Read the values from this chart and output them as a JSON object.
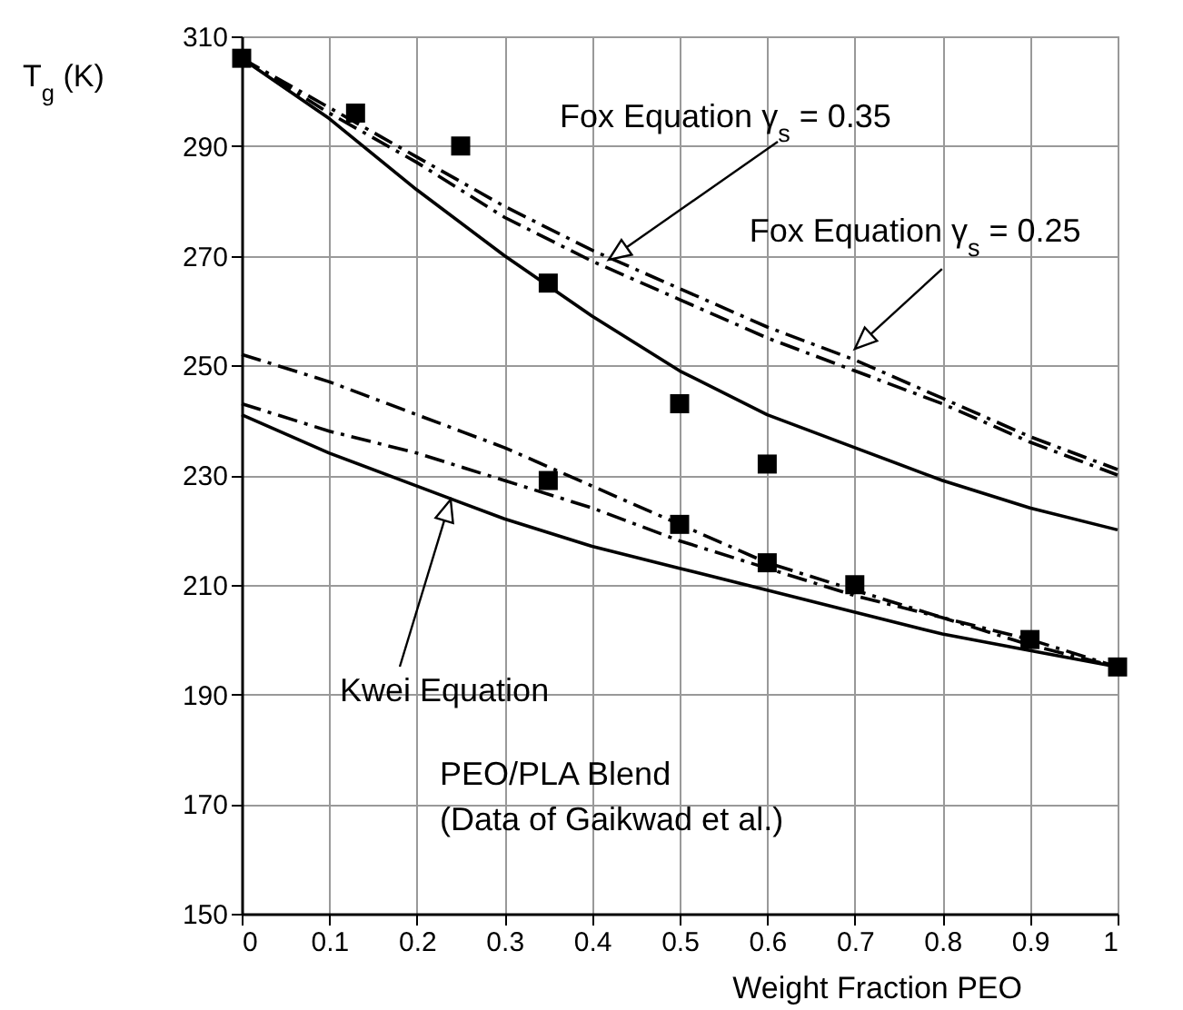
{
  "chart_data": {
    "type": "line",
    "xlabel": "Weight Fraction PEO",
    "ylabel": "T$_{g}$ (K)",
    "xlim": [
      0,
      1
    ],
    "ylim": [
      150,
      310
    ],
    "xticks": [
      0,
      0.1,
      0.2,
      0.3,
      0.4,
      0.5,
      0.6,
      0.7,
      0.8,
      0.9,
      1
    ],
    "yticks": [
      150,
      170,
      190,
      210,
      230,
      250,
      270,
      290,
      310
    ],
    "grid": true,
    "series": [
      {
        "type": "scatter",
        "marker": "square",
        "color": "#000000",
        "x": [
          0,
          0.13,
          0.25,
          0.35,
          0.35,
          0.5,
          0.5,
          0.6,
          0.6,
          0.7,
          0.9,
          1
        ],
        "values": [
          306,
          296,
          290,
          265,
          229,
          243,
          221,
          232,
          214,
          210,
          200,
          195
        ]
      },
      {
        "type": "line",
        "line_style": "solid",
        "color": "#000000",
        "x": [
          0,
          0.1,
          0.2,
          0.3,
          0.4,
          0.5,
          0.6,
          0.7,
          0.8,
          0.9,
          1
        ],
        "values": [
          306,
          295,
          282,
          270,
          259,
          249,
          241,
          235,
          229,
          224,
          220
        ]
      },
      {
        "line_style": "dashed",
        "color": "#000000",
        "x": [
          0,
          0.1,
          0.2,
          0.3,
          0.4,
          0.5,
          0.6,
          0.7,
          0.8,
          0.9,
          1
        ],
        "values": [
          306,
          297,
          288,
          279,
          271,
          264,
          257,
          251,
          244,
          237,
          231
        ]
      },
      {
        "line_style": "dashed",
        "color": "#000000",
        "x": [
          0,
          0.1,
          0.2,
          0.3,
          0.4,
          0.5,
          0.6,
          0.7,
          0.8,
          0.9,
          1
        ],
        "values": [
          306,
          296,
          287,
          277,
          269,
          262,
          255,
          249,
          243,
          236,
          230
        ]
      },
      {
        "line_style": "dashed",
        "color": "#000000",
        "x": [
          0,
          0.1,
          0.2,
          0.3,
          0.4,
          0.5,
          0.6,
          0.7,
          0.8,
          0.9,
          1
        ],
        "values": [
          252,
          247,
          241,
          235,
          228,
          221,
          214,
          209,
          204,
          200,
          195
        ]
      },
      {
        "line_style": "dashed",
        "color": "#000000",
        "x": [
          0,
          0.1,
          0.2,
          0.3,
          0.4,
          0.5,
          0.6,
          0.7,
          0.8,
          0.9,
          1
        ],
        "values": [
          243,
          238,
          234,
          229,
          224,
          218,
          213,
          208,
          204,
          199,
          195
        ]
      },
      {
        "line_style": "solid",
        "color": "#000000",
        "x": [
          0,
          0.1,
          0.2,
          0.3,
          0.4,
          0.5,
          0.6,
          0.7,
          0.8,
          0.9,
          1
        ],
        "values": [
          241,
          234,
          228,
          222,
          217,
          213,
          209,
          205,
          201,
          198,
          195
        ]
      }
    ],
    "annotations": [
      "Fox Equation γ$_{s}$ = 0.35",
      {
        "text": "Fox Equation γ$_{s}$ = 0.25",
        "x": 0.7,
        "y": 253
      },
      "Kwei Equation",
      "PEO/PLA Blend",
      "(Data of Gaikwad et al.)"
    ]
  }
}
